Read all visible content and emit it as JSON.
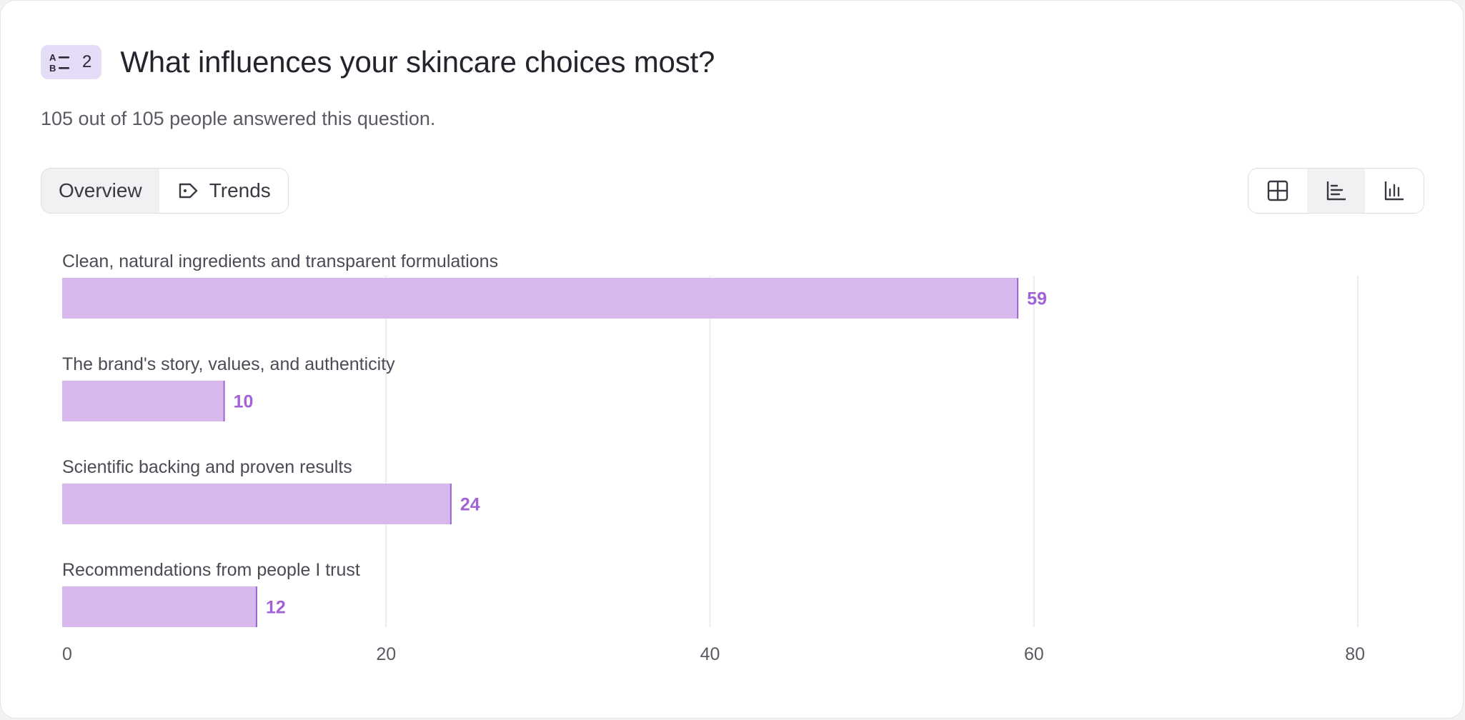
{
  "question": {
    "number": "2",
    "icon": "multiple-choice-icon",
    "title": "What influences your skincare choices most?",
    "subtitle": "105 out of 105 people answered this question."
  },
  "tabs": {
    "overview_label": "Overview",
    "trends_label": "Trends",
    "trends_icon": "tag-icon"
  },
  "view_toggle": {
    "options": [
      "table-view-icon",
      "horizontal-bar-view-icon",
      "vertical-bar-view-icon"
    ],
    "selected": "horizontal-bar-view-icon"
  },
  "colors": {
    "bar_fill": "#d7b8ec",
    "bar_edge": "#a262d6",
    "value_text": "#a262d6",
    "badge_bg": "#e5dcf7"
  },
  "chart_data": {
    "type": "bar",
    "orientation": "horizontal",
    "categories": [
      "Clean, natural ingredients and transparent formulations",
      "The brand's story, values, and authenticity",
      "Scientific backing and proven results",
      "Recommendations from people I trust"
    ],
    "values": [
      59,
      10,
      24,
      12
    ],
    "xlim": [
      0,
      80
    ],
    "xticks": [
      "0",
      "20",
      "40",
      "60",
      "80"
    ],
    "grid": true
  }
}
